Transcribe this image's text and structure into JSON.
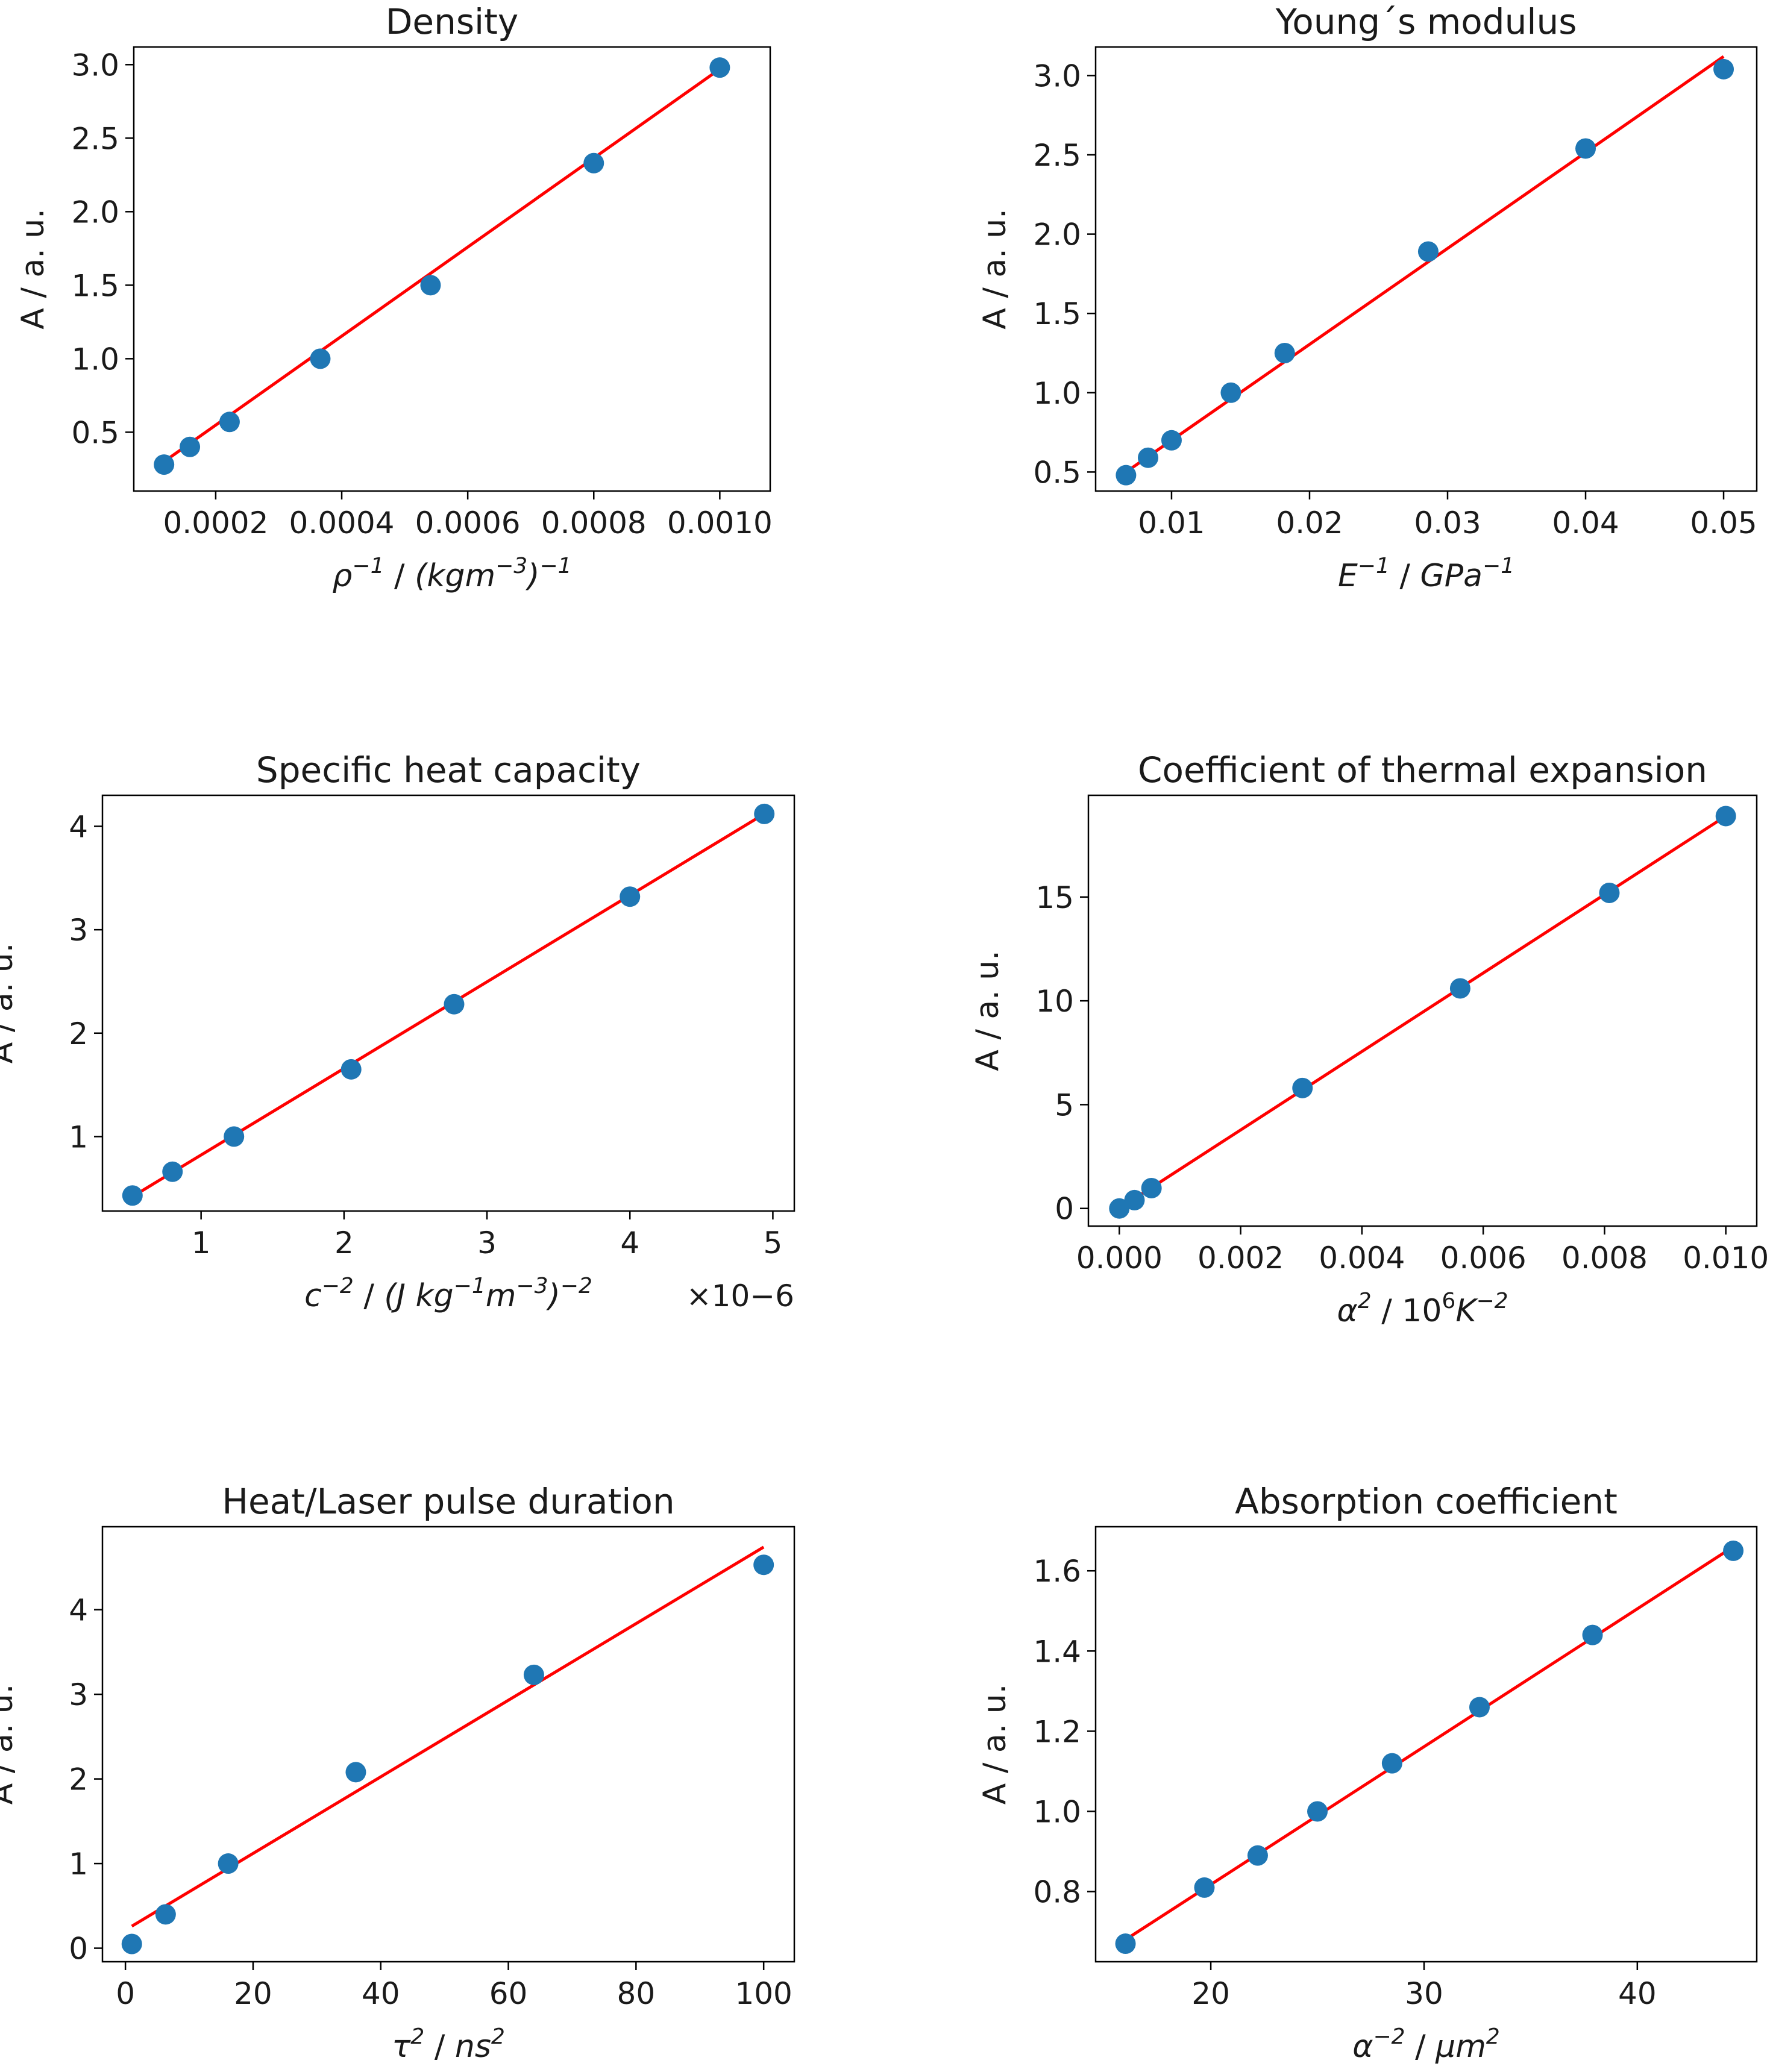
{
  "chart_data": [
    {
      "type": "scatter",
      "title": "Density",
      "xlabel_parts": [
        [
          "ρ",
          "i",
          ""
        ],
        [
          "−1",
          "i",
          "sup"
        ],
        [
          "  /  ",
          "n",
          ""
        ],
        [
          "(kgm",
          "i",
          ""
        ],
        [
          "−3",
          "i",
          "sup"
        ],
        [
          ")",
          "i",
          ""
        ],
        [
          "−1",
          "i",
          "sup"
        ]
      ],
      "ylabel": "A / a. u.",
      "xlim": [
        7e-05,
        0.00108
      ],
      "ylim": [
        0.1,
        3.12
      ],
      "xticks": [
        0.0002,
        0.0004,
        0.0006,
        0.0008,
        0.001
      ],
      "xtick_labels": [
        "0.0002",
        "0.0004",
        "0.0006",
        "0.0008",
        "0.0010"
      ],
      "yticks": [
        0.5,
        1.0,
        1.5,
        2.0,
        2.5,
        3.0
      ],
      "ytick_labels": [
        "0.5",
        "1.0",
        "1.5",
        "2.0",
        "2.5",
        "3.0"
      ],
      "offset_text": "",
      "points_x": [
        0.000118,
        0.000159,
        0.000222,
        0.000366,
        0.000541,
        0.0008,
        0.001
      ],
      "points_y": [
        0.28,
        0.4,
        0.57,
        1.0,
        1.5,
        2.33,
        2.98
      ],
      "fit": [
        [
          0.000118,
          0.3
        ],
        [
          0.001,
          2.97
        ]
      ],
      "point_color": "#1f77b4",
      "fit_color": "#ff0000"
    },
    {
      "type": "scatter",
      "title": "Young´s modulus",
      "xlabel_parts": [
        [
          "E",
          "i",
          ""
        ],
        [
          "−1",
          "i",
          "sup"
        ],
        [
          "  /  ",
          "n",
          ""
        ],
        [
          "GPa",
          "i",
          ""
        ],
        [
          "−1",
          "i",
          "sup"
        ]
      ],
      "ylabel": "A / a. u.",
      "xlim": [
        0.0045,
        0.0524
      ],
      "ylim": [
        0.38,
        3.18
      ],
      "xticks": [
        0.01,
        0.02,
        0.03,
        0.04,
        0.05
      ],
      "xtick_labels": [
        "0.01",
        "0.02",
        "0.03",
        "0.04",
        "0.05"
      ],
      "yticks": [
        0.5,
        1.0,
        1.5,
        2.0,
        2.5,
        3.0
      ],
      "ytick_labels": [
        "0.5",
        "1.0",
        "1.5",
        "2.0",
        "2.5",
        "3.0"
      ],
      "offset_text": "",
      "points_x": [
        0.0067,
        0.0083,
        0.01,
        0.0143,
        0.0182,
        0.0286,
        0.04,
        0.05
      ],
      "points_y": [
        0.48,
        0.59,
        0.7,
        1.0,
        1.25,
        1.89,
        2.54,
        3.04
      ],
      "fit": [
        [
          0.0067,
          0.5
        ],
        [
          0.05,
          3.12
        ]
      ],
      "point_color": "#1f77b4",
      "fit_color": "#ff0000"
    },
    {
      "type": "scatter",
      "title": "Specific heat capacity",
      "xlabel_parts": [
        [
          "c",
          "i",
          ""
        ],
        [
          "−2",
          "i",
          "supsub"
        ],
        [
          "  /  ",
          "n",
          ""
        ],
        [
          "(J kg",
          "i",
          ""
        ],
        [
          "−1",
          "i",
          "sup"
        ],
        [
          "m",
          "i",
          ""
        ],
        [
          "−3",
          "i",
          "sup"
        ],
        [
          ")",
          "i",
          ""
        ],
        [
          "−2",
          "i",
          "sup"
        ]
      ],
      "ylabel": "A / a. u.",
      "xlim": [
        0.31,
        5.15
      ],
      "ylim": [
        0.28,
        4.3
      ],
      "xticks": [
        1,
        2,
        3,
        4,
        5
      ],
      "xtick_labels": [
        "1",
        "2",
        "3",
        "4",
        "5"
      ],
      "yticks": [
        1,
        2,
        3,
        4
      ],
      "ytick_labels": [
        "1",
        "2",
        "3",
        "4"
      ],
      "offset_text": "×10−6",
      "points_x": [
        0.52,
        0.8,
        1.23,
        2.05,
        2.77,
        4.0,
        4.94
      ],
      "points_y": [
        0.43,
        0.66,
        1.0,
        1.65,
        2.28,
        3.32,
        4.12
      ],
      "fit": [
        [
          0.52,
          0.42
        ],
        [
          4.94,
          4.12
        ]
      ],
      "point_color": "#1f77b4",
      "fit_color": "#ff0000"
    },
    {
      "type": "scatter",
      "title": "Coefficient of thermal expansion",
      "xlabel_parts": [
        [
          "α",
          "i",
          ""
        ],
        [
          "2",
          "i",
          "supsub"
        ],
        [
          "  /  ",
          "n",
          ""
        ],
        [
          "10",
          "n",
          ""
        ],
        [
          "6",
          "n",
          "sup"
        ],
        [
          "K",
          "i",
          ""
        ],
        [
          "−2",
          "i",
          "sup"
        ]
      ],
      "ylabel": "A / a. u.",
      "xlim": [
        -0.00051,
        0.01051
      ],
      "ylim": [
        -0.85,
        19.9
      ],
      "xticks": [
        0,
        0.002,
        0.004,
        0.006,
        0.008,
        0.01
      ],
      "xtick_labels": [
        "0.000",
        "0.002",
        "0.004",
        "0.006",
        "0.008",
        "0.010"
      ],
      "yticks": [
        0,
        5,
        10,
        15
      ],
      "ytick_labels": [
        "0",
        "5",
        "10",
        "15"
      ],
      "offset_text": "",
      "points_x": [
        0.0,
        0.00025,
        0.00053,
        0.00302,
        0.00562,
        0.00808,
        0.01
      ],
      "points_y": [
        0.0,
        0.4,
        0.98,
        5.8,
        10.6,
        15.2,
        18.9
      ],
      "fit": [
        [
          0.0,
          0.0
        ],
        [
          0.01,
          18.9
        ]
      ],
      "point_color": "#1f77b4",
      "fit_color": "#ff0000"
    },
    {
      "type": "scatter",
      "title": "Heat/Laser pulse duration",
      "xlabel_parts": [
        [
          "τ",
          "i",
          ""
        ],
        [
          "2",
          "i",
          "supsub"
        ],
        [
          "  /  ",
          "n",
          ""
        ],
        [
          "ns",
          "i",
          ""
        ],
        [
          "2",
          "i",
          "sup"
        ]
      ],
      "ylabel": "A / a. u.",
      "xlim": [
        -3.6,
        104.8
      ],
      "ylim": [
        -0.16,
        4.98
      ],
      "xticks": [
        0,
        20,
        40,
        60,
        80,
        100
      ],
      "xtick_labels": [
        "0",
        "20",
        "40",
        "60",
        "80",
        "100"
      ],
      "yticks": [
        0,
        1,
        2,
        3,
        4
      ],
      "ytick_labels": [
        "0",
        "1",
        "2",
        "3",
        "4"
      ],
      "offset_text": "",
      "points_x": [
        1,
        6.3,
        16.1,
        36.1,
        64,
        100
      ],
      "points_y": [
        0.05,
        0.4,
        1.0,
        2.08,
        3.23,
        4.53
      ],
      "fit": [
        [
          1,
          0.26
        ],
        [
          100,
          4.74
        ]
      ],
      "point_color": "#1f77b4",
      "fit_color": "#ff0000"
    },
    {
      "type": "scatter",
      "title": "Absorption coefficient",
      "xlabel_parts": [
        [
          "α",
          "i",
          ""
        ],
        [
          "−2",
          "i",
          "supsub"
        ],
        [
          "  /  ",
          "n",
          ""
        ],
        [
          "μm",
          "i",
          ""
        ],
        [
          "2",
          "i",
          "sup"
        ]
      ],
      "ylabel": "A / a. u.",
      "xlim": [
        14.6,
        45.6
      ],
      "ylim": [
        0.625,
        1.71
      ],
      "xticks": [
        20,
        30,
        40
      ],
      "xtick_labels": [
        "20",
        "30",
        "40"
      ],
      "yticks": [
        0.8,
        1.0,
        1.2,
        1.4,
        1.6
      ],
      "ytick_labels": [
        "0.8",
        "1.0",
        "1.2",
        "1.4",
        "1.6"
      ],
      "offset_text": "",
      "points_x": [
        16.0,
        19.7,
        22.2,
        25.0,
        28.5,
        32.6,
        37.9,
        44.5
      ],
      "points_y": [
        0.67,
        0.81,
        0.89,
        1.0,
        1.12,
        1.26,
        1.44,
        1.65
      ],
      "fit": [
        [
          16.0,
          0.68
        ],
        [
          44.5,
          1.66
        ]
      ],
      "point_color": "#1f77b4",
      "fit_color": "#ff0000"
    }
  ]
}
